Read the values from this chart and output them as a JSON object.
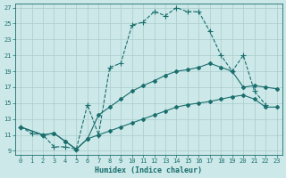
{
  "xlabel": "Humidex (Indice chaleur)",
  "bg_color": "#cce8e8",
  "grid_color": "#aacccc",
  "line_color": "#1a6e6e",
  "xlim": [
    -0.5,
    23.5
  ],
  "ylim": [
    8.5,
    27.5
  ],
  "xticks": [
    0,
    1,
    2,
    3,
    4,
    5,
    6,
    7,
    8,
    9,
    10,
    11,
    12,
    13,
    14,
    15,
    16,
    17,
    18,
    19,
    20,
    21,
    22,
    23
  ],
  "yticks": [
    9,
    11,
    13,
    15,
    17,
    19,
    21,
    23,
    25,
    27
  ],
  "line1_x": [
    0,
    1,
    2,
    3,
    4,
    5,
    6,
    7,
    8,
    9,
    10,
    11,
    12,
    13,
    14,
    15,
    16,
    17,
    18,
    19,
    20,
    21,
    22
  ],
  "line1_y": [
    12.0,
    11.2,
    11.0,
    9.5,
    9.5,
    9.2,
    14.8,
    11.0,
    19.5,
    20.0,
    24.8,
    25.2,
    26.5,
    26.0,
    27.0,
    26.5,
    26.5,
    24.0,
    21.0,
    19.0,
    21.0,
    16.5,
    14.8
  ],
  "line2_x": [
    0,
    2,
    3,
    4,
    5,
    6,
    7,
    8,
    9,
    10,
    11,
    12,
    13,
    14,
    15,
    16,
    17,
    18,
    19,
    20,
    21,
    22,
    23
  ],
  "line2_y": [
    12.0,
    11.0,
    11.2,
    10.2,
    9.2,
    10.5,
    13.5,
    14.5,
    15.5,
    16.5,
    17.2,
    17.8,
    18.5,
    19.0,
    19.2,
    19.5,
    20.0,
    19.5,
    19.0,
    17.0,
    17.2,
    17.0,
    16.8
  ],
  "line3_x": [
    0,
    2,
    3,
    4,
    5,
    6,
    7,
    8,
    9,
    10,
    11,
    12,
    13,
    14,
    15,
    16,
    17,
    18,
    19,
    20,
    21,
    22,
    23
  ],
  "line3_y": [
    12.0,
    11.0,
    11.2,
    10.2,
    9.2,
    10.5,
    11.0,
    11.5,
    12.0,
    12.5,
    13.0,
    13.5,
    14.0,
    14.5,
    14.8,
    15.0,
    15.2,
    15.5,
    15.8,
    16.0,
    15.5,
    14.5,
    14.5
  ]
}
